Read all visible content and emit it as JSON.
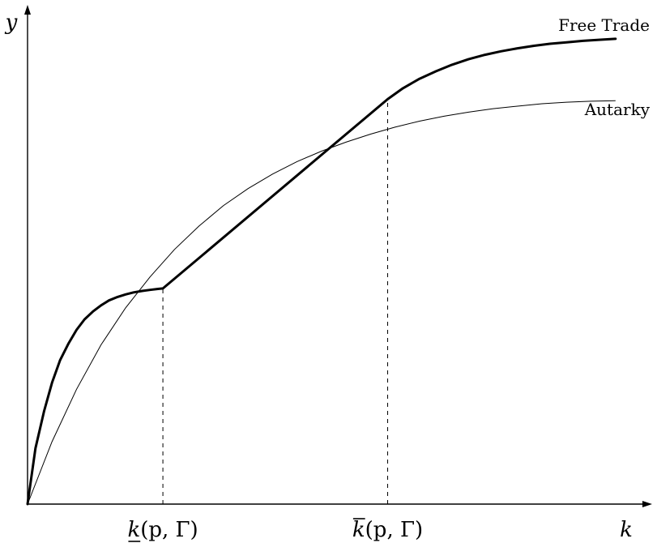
{
  "chart_data": {
    "type": "line",
    "xlabel": "k",
    "ylabel": "y",
    "xlim": [
      0,
      1
    ],
    "ylim": [
      0,
      1
    ],
    "ticks": [
      {
        "name": "k-lower",
        "x": 0.221,
        "base": "k",
        "args": "(p, Γ)",
        "decoration": "underline"
      },
      {
        "name": "k-upper",
        "x": 0.588,
        "base": "k",
        "args": "(p, Γ)",
        "decoration": "overline"
      }
    ],
    "series": [
      {
        "name": "Free Trade",
        "style": "thick",
        "points": [
          [
            0,
            0
          ],
          [
            0.013,
            0.112
          ],
          [
            0.027,
            0.186
          ],
          [
            0.04,
            0.243
          ],
          [
            0.053,
            0.288
          ],
          [
            0.067,
            0.322
          ],
          [
            0.08,
            0.349
          ],
          [
            0.093,
            0.37
          ],
          [
            0.107,
            0.386
          ],
          [
            0.12,
            0.398
          ],
          [
            0.133,
            0.408
          ],
          [
            0.147,
            0.415
          ],
          [
            0.16,
            0.42
          ],
          [
            0.173,
            0.424
          ],
          [
            0.187,
            0.427
          ],
          [
            0.2,
            0.429
          ],
          [
            0.213,
            0.431
          ],
          [
            0.221,
            0.432
          ],
          [
            0.588,
            0.811
          ],
          [
            0.613,
            0.833
          ],
          [
            0.64,
            0.852
          ],
          [
            0.667,
            0.867
          ],
          [
            0.693,
            0.88
          ],
          [
            0.72,
            0.891
          ],
          [
            0.747,
            0.9
          ],
          [
            0.773,
            0.907
          ],
          [
            0.8,
            0.913
          ],
          [
            0.827,
            0.918
          ],
          [
            0.853,
            0.922
          ],
          [
            0.88,
            0.925
          ],
          [
            0.907,
            0.928
          ],
          [
            0.933,
            0.93
          ],
          [
            0.96,
            0.932
          ]
        ]
      },
      {
        "name": "Autarky",
        "style": "thin",
        "points": [
          [
            0,
            0
          ],
          [
            0.04,
            0.125
          ],
          [
            0.08,
            0.23
          ],
          [
            0.12,
            0.319
          ],
          [
            0.16,
            0.393
          ],
          [
            0.2,
            0.455
          ],
          [
            0.24,
            0.51
          ],
          [
            0.28,
            0.557
          ],
          [
            0.32,
            0.598
          ],
          [
            0.36,
            0.632
          ],
          [
            0.4,
            0.661
          ],
          [
            0.44,
            0.686
          ],
          [
            0.48,
            0.707
          ],
          [
            0.52,
            0.725
          ],
          [
            0.56,
            0.741
          ],
          [
            0.6,
            0.755
          ],
          [
            0.64,
            0.767
          ],
          [
            0.68,
            0.777
          ],
          [
            0.72,
            0.785
          ],
          [
            0.76,
            0.792
          ],
          [
            0.8,
            0.797
          ],
          [
            0.84,
            0.802
          ],
          [
            0.88,
            0.805
          ],
          [
            0.92,
            0.807
          ],
          [
            0.96,
            0.808
          ]
        ]
      }
    ],
    "legend_placement": "end-of-curve labels at top-right",
    "grid": false
  }
}
